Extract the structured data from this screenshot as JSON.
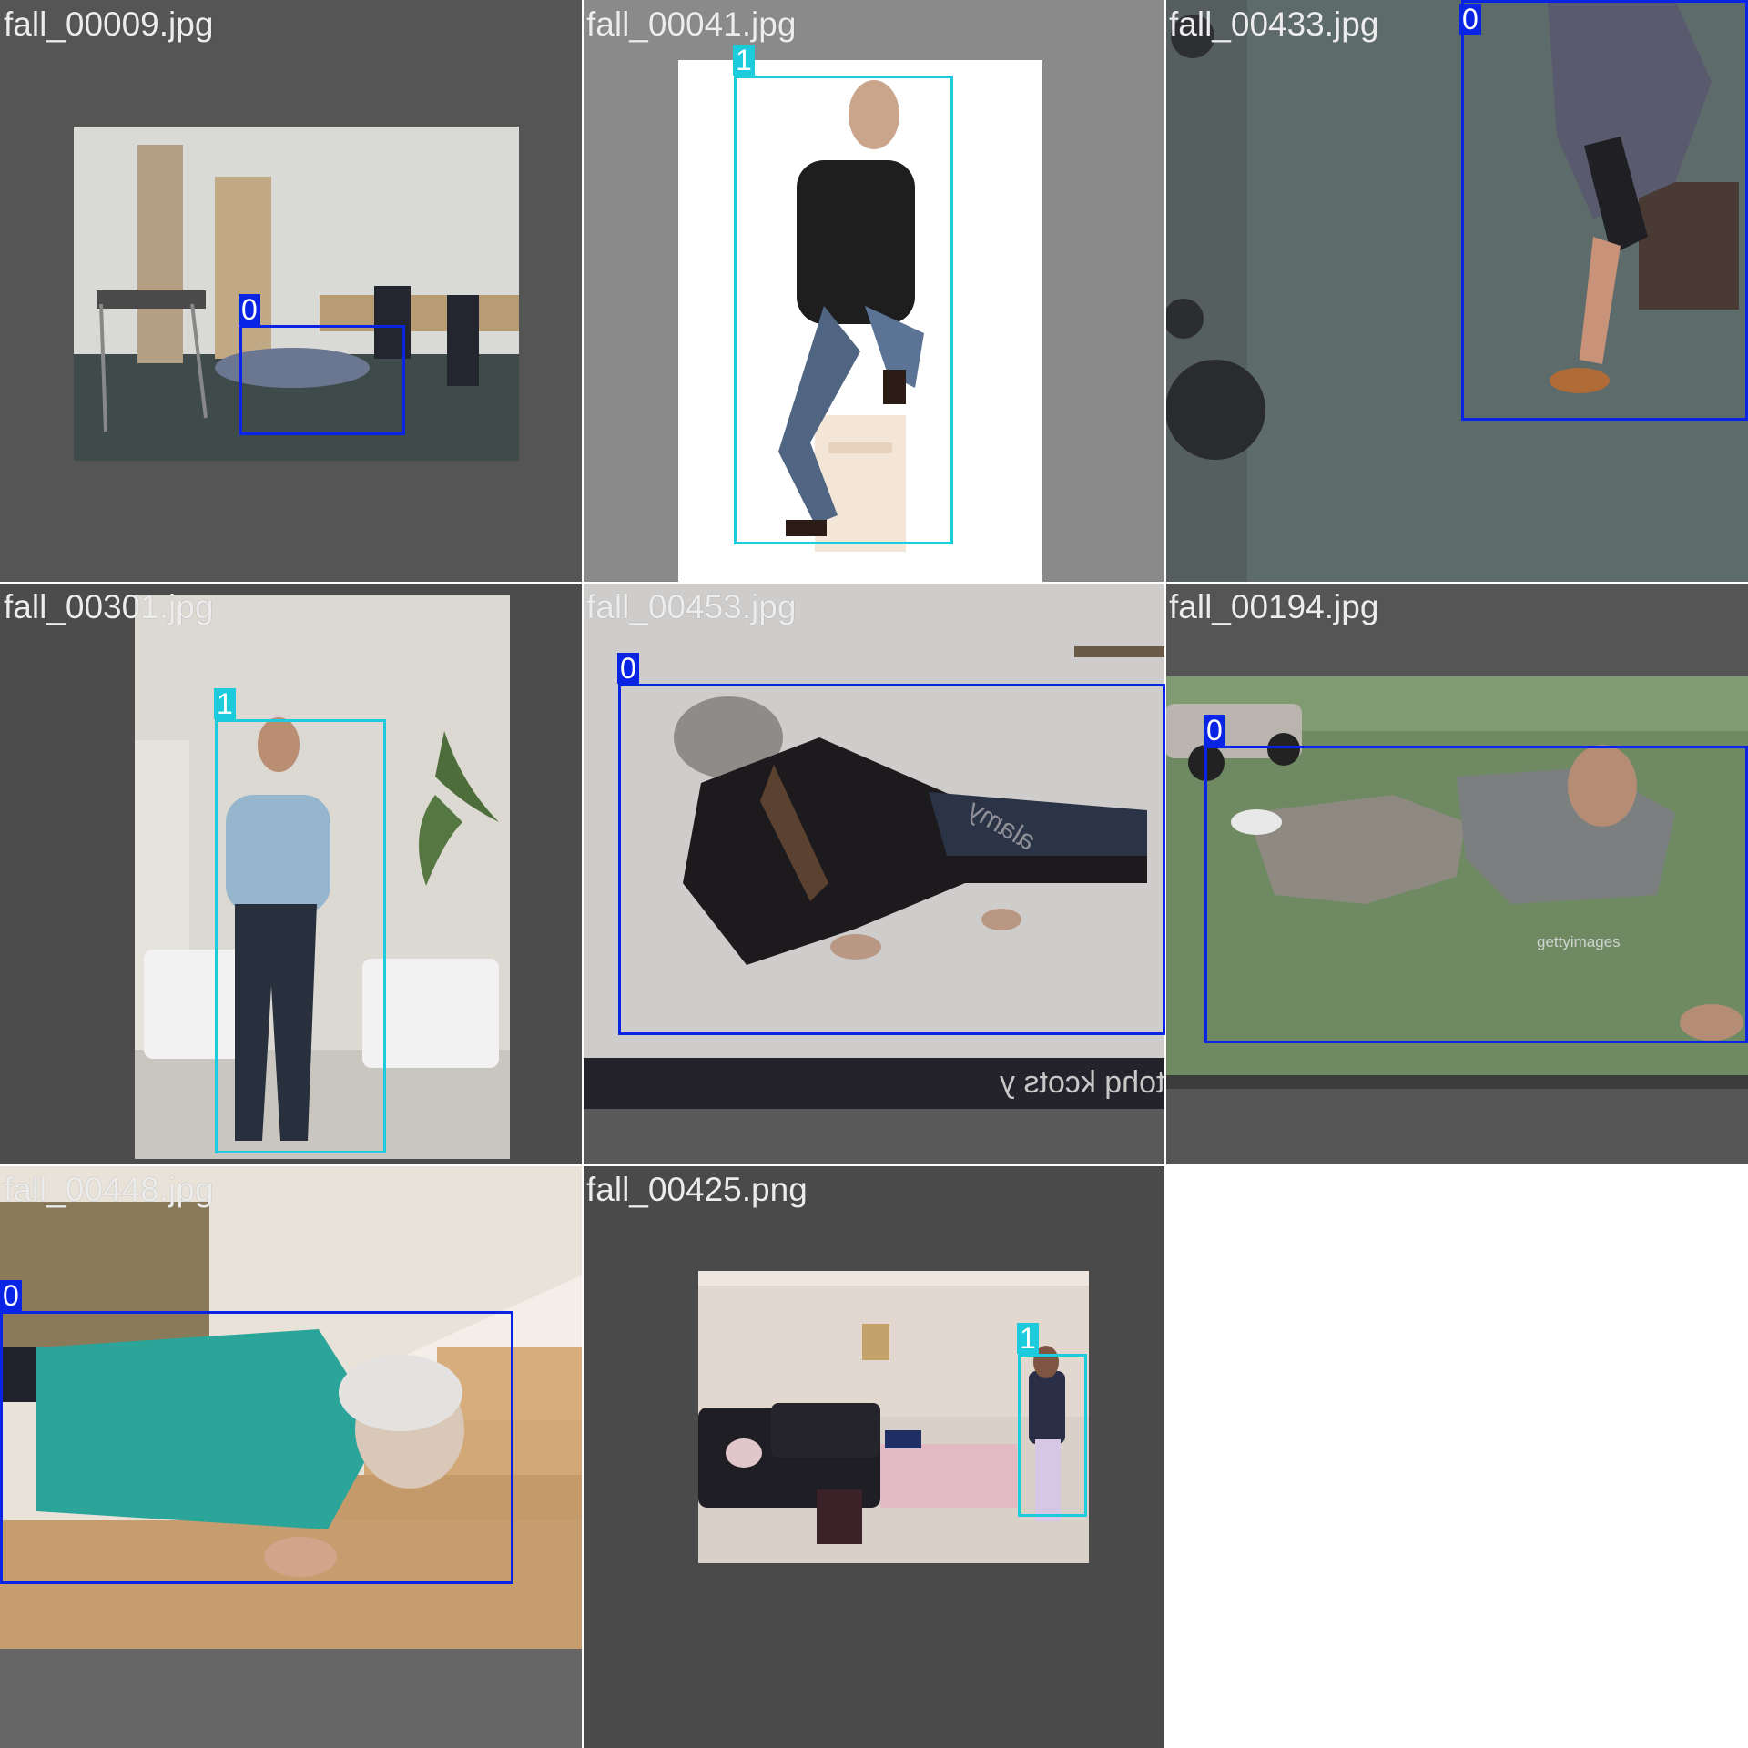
{
  "colors": {
    "class_0": "#0a24e6",
    "class_1": "#1ccbdc",
    "tile_dark": "#555555",
    "tile_mid": "#8a8a8a",
    "tile_darker": "#4a4a4a"
  },
  "tiles": [
    {
      "filename": "fall_00009.jpg",
      "labels": [
        "0"
      ],
      "scene": "office-room"
    },
    {
      "filename": "fall_00041.jpg",
      "labels": [
        "1"
      ],
      "scene": "studio-white"
    },
    {
      "filename": "fall_00433.jpg",
      "labels": [
        "0"
      ],
      "scene": "carpet-topdown"
    },
    {
      "filename": "fall_00301.jpg",
      "labels": [
        "1"
      ],
      "scene": "living-room"
    },
    {
      "filename": "fall_00453.jpg",
      "labels": [
        "0"
      ],
      "scene": "snow-ground",
      "watermarks": [
        "otohq kcots y",
        "alamy"
      ]
    },
    {
      "filename": "fall_00194.jpg",
      "labels": [
        "0"
      ],
      "scene": "lawn",
      "watermarks": [
        "gettyimages"
      ]
    },
    {
      "filename": "fall_00448.jpg",
      "labels": [
        "0"
      ],
      "scene": "stairs"
    },
    {
      "filename": "fall_00425.png",
      "labels": [
        "1"
      ],
      "scene": "lounge"
    }
  ]
}
